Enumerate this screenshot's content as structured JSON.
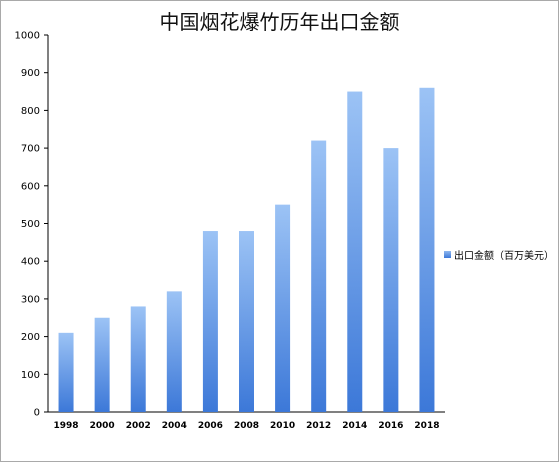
{
  "chart_data": {
    "type": "bar",
    "title": "中国烟花爆竹历年出口金额",
    "xlabel": "",
    "ylabel": "",
    "categories": [
      "1998",
      "2000",
      "2002",
      "2004",
      "2006",
      "2008",
      "2010",
      "2012",
      "2014",
      "2016",
      "2018"
    ],
    "series": [
      {
        "name": "出口金额（百万美元）",
        "values": [
          210,
          250,
          280,
          320,
          480,
          480,
          550,
          720,
          850,
          700,
          860
        ]
      }
    ],
    "ylim": [
      0,
      1000
    ],
    "yticks": [
      "0",
      "100",
      "200",
      "300",
      "400",
      "500",
      "600",
      "700",
      "800",
      "900",
      "1000"
    ],
    "grid": false,
    "legend_position": "right",
    "colors": {
      "bar_top": "#9cc3f5",
      "bar_bottom": "#3c78d8",
      "axis": "#000000",
      "frame": "#a9a9a9"
    }
  }
}
